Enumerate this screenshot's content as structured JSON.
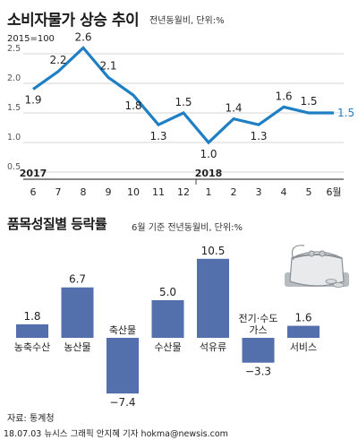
{
  "chart_data": [
    {
      "type": "line",
      "title": "소비자물가 상승 추이",
      "subtitle": "전년동월비, 단위:%",
      "base_label": "2015=100",
      "x": [
        "6",
        "7",
        "8",
        "9",
        "10",
        "11",
        "12",
        "1",
        "2",
        "3",
        "4",
        "5",
        "6월"
      ],
      "year_labels": [
        {
          "label": "2017",
          "index": 0
        },
        {
          "label": "2018",
          "index": 7
        }
      ],
      "values": [
        1.9,
        2.2,
        2.6,
        2.1,
        1.8,
        1.3,
        1.5,
        1.0,
        1.4,
        1.3,
        1.6,
        1.5,
        1.5
      ],
      "value_labels": [
        "1.9",
        "2.2",
        "2.6",
        "2.1",
        "1.8",
        "1.3",
        "1.5",
        "1.0",
        "1.4",
        "1.3",
        "1.6",
        "1.5",
        "1.5"
      ],
      "yticks": [
        "0.5",
        "1.0",
        "1.5",
        "2.0",
        "2.5"
      ],
      "ylim": [
        0.5,
        2.6
      ],
      "grid": true,
      "color": "#1f7fc4"
    },
    {
      "type": "bar",
      "title": "품목성질별 등락률",
      "subtitle": "6월 기준 전년동월비, 단위:%",
      "categories": [
        "농축수산",
        "농산물",
        "축산물",
        "수산물",
        "석유류",
        "전기·수도\n가스",
        "서비스"
      ],
      "category_lines": [
        [
          "농축수산"
        ],
        [
          "농산물"
        ],
        [
          "축산물"
        ],
        [
          "수산물"
        ],
        [
          "석유류"
        ],
        [
          "전기·수도",
          "가스"
        ],
        [
          "서비스"
        ]
      ],
      "values": [
        1.8,
        6.7,
        -7.4,
        5.0,
        10.5,
        -3.3,
        1.6
      ],
      "value_labels": [
        "1.8",
        "6.7",
        "−7.4",
        "5.0",
        "10.5",
        "−3.3",
        "1.6"
      ],
      "color": "#5470ac"
    }
  ],
  "footer": {
    "source": "자료: 통계청",
    "credit": "18.07.03  뉴시스 그래픽 안지혜 기자  hokma@newsis.com"
  }
}
